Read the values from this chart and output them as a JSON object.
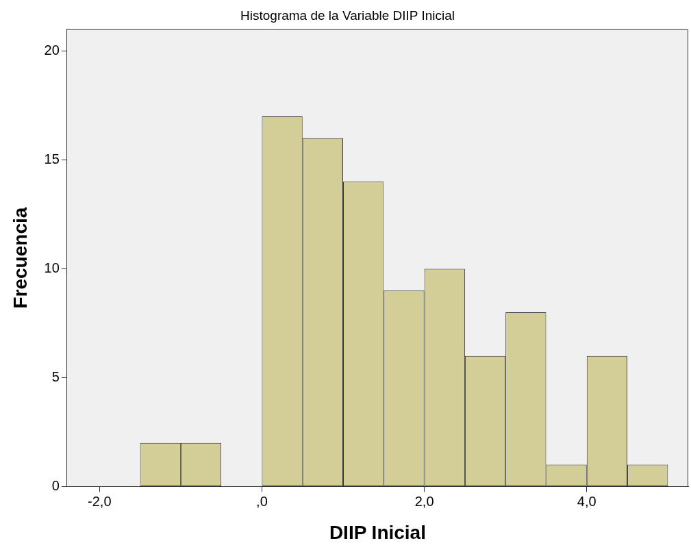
{
  "chart_data": {
    "type": "histogram",
    "title": "Histograma de la Variable DIIP Inicial",
    "xlabel": "DIIP Inicial",
    "ylabel": "Frecuencia",
    "bins": [
      -1.5,
      -1.0,
      -0.5,
      0.0,
      0.5,
      1.0,
      1.5,
      2.0,
      2.5,
      3.0,
      3.5,
      4.0,
      4.5,
      5.0
    ],
    "values": [
      2,
      2,
      0,
      17,
      16,
      14,
      9,
      10,
      6,
      8,
      1,
      6,
      1
    ],
    "color": "#d3ce97",
    "xlim": [
      -2.4,
      5.25
    ],
    "xticks": [
      {
        "value": -2,
        "label": "-2,0"
      },
      {
        "value": 0,
        "label": ",0"
      },
      {
        "value": 2,
        "label": "2,0"
      },
      {
        "value": 4,
        "label": "4,0"
      }
    ],
    "ylim": [
      0,
      21
    ],
    "yticks": [
      0,
      5,
      10,
      15,
      20
    ],
    "grid": false,
    "legend": false
  }
}
